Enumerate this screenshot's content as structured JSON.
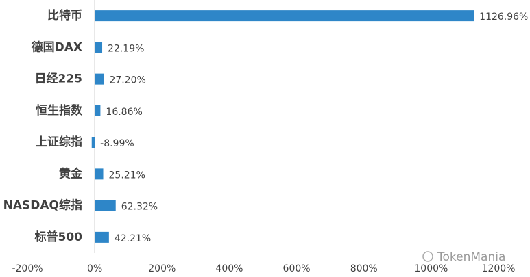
{
  "chart_data": {
    "type": "hbar",
    "categories": [
      "比特币",
      "德国DAX",
      "日经225",
      "恒生指数",
      "上证综指",
      "黄金",
      "NASDAQ综指",
      "标普500"
    ],
    "values": [
      1126.96,
      22.19,
      27.2,
      16.86,
      -8.99,
      25.21,
      62.32,
      42.21
    ],
    "value_labels": [
      "1126.96%",
      "22.19%",
      "27.20%",
      "16.86%",
      "-8.99%",
      "25.21%",
      "62.32%",
      "42.21%"
    ],
    "color": "#2e86c8",
    "xlim": [
      -200,
      1200
    ],
    "xticks": [
      {
        "value": -200,
        "label": "-200%"
      },
      {
        "value": 0,
        "label": "0%"
      },
      {
        "value": 200,
        "label": "200%"
      },
      {
        "value": 400,
        "label": "400%"
      },
      {
        "value": 600,
        "label": "600%"
      },
      {
        "value": 800,
        "label": "800%"
      },
      {
        "value": 1000,
        "label": "1000%"
      },
      {
        "value": 1200,
        "label": "1200%"
      }
    ],
    "grid": false,
    "watermark": "TokenMania"
  }
}
